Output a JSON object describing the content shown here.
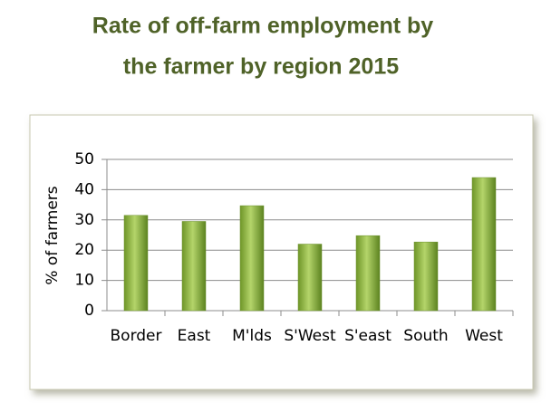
{
  "chart_data": {
    "type": "bar",
    "title": [
      "Rate of off-farm employment by",
      "the farmer by region 2015"
    ],
    "y_label": "% of farmers",
    "categories": [
      "Border",
      "East",
      "M'lds",
      "S'West",
      "S'east",
      "South",
      "West"
    ],
    "values": [
      31.5,
      29.5,
      34.7,
      22,
      24.8,
      22.7,
      44
    ],
    "color": "#8db63c",
    "ylim": [
      0,
      50
    ],
    "yticks": [
      0,
      10,
      20,
      30,
      40,
      50
    ],
    "grid": true
  }
}
